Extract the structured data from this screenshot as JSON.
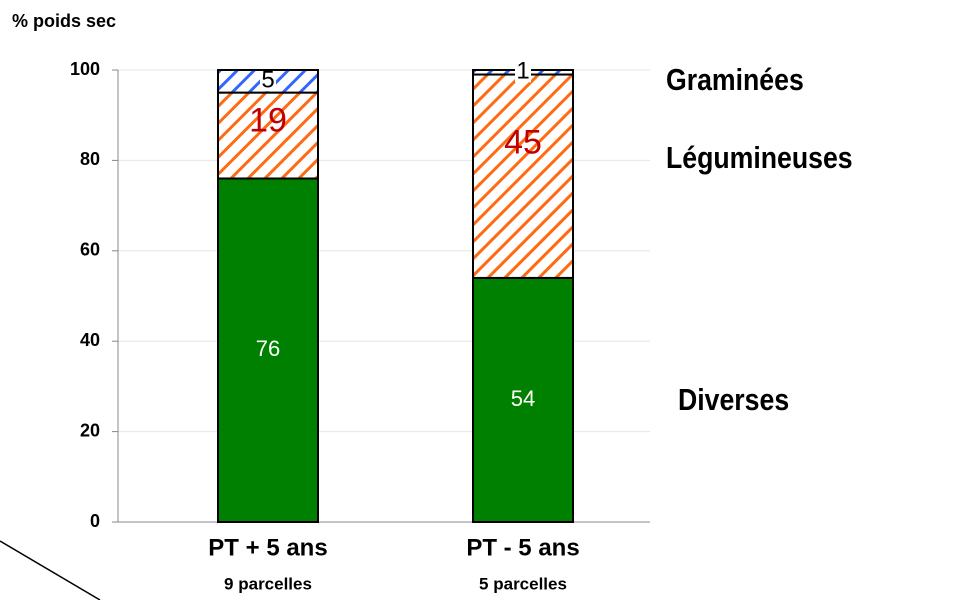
{
  "chart_data": {
    "type": "stacked_bar",
    "y_axis_label": "% poids sec",
    "categories": [
      "PT + 5 ans",
      "PT - 5 ans"
    ],
    "category_notes": [
      "9 parcelles",
      "5 parcelles"
    ],
    "series": [
      {
        "name": "Graminées",
        "color": "#008000",
        "hatch": false,
        "label_color": "#ffffff",
        "values": [
          76,
          54
        ]
      },
      {
        "name": "Légumineuses",
        "color": "#ff6a13",
        "hatch": true,
        "label_color": "#c00000",
        "values": [
          19,
          45
        ]
      },
      {
        "name": "Diverses",
        "color": "#3366ff",
        "hatch": true,
        "label_color": "#000000",
        "values": [
          5,
          1
        ]
      }
    ],
    "ylim": [
      0,
      100
    ],
    "yticks": [
      0,
      20,
      40,
      60,
      80,
      100
    ],
    "grid": true
  }
}
